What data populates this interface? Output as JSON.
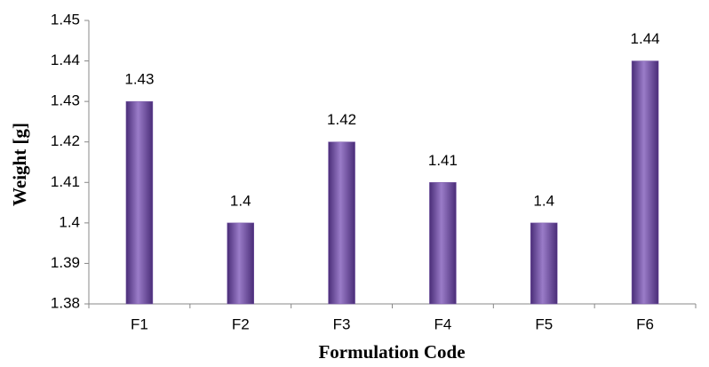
{
  "chart_data": {
    "type": "bar",
    "x_label": "Formulation Code",
    "y_label": "Weight [g]",
    "categories": [
      "F1",
      "F2",
      "F3",
      "F4",
      "F5",
      "F6"
    ],
    "values": [
      1.43,
      1.4,
      1.42,
      1.41,
      1.4,
      1.44
    ],
    "color": "#7a5aa8",
    "ylim": [
      1.38,
      1.45
    ],
    "yticks": [
      1.38,
      1.39,
      1.4,
      1.41,
      1.42,
      1.43,
      1.44,
      1.45
    ],
    "grid": false
  }
}
